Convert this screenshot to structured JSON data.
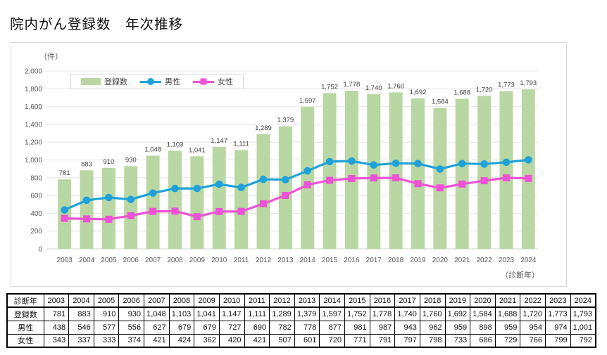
{
  "page_title": "院内がん登録数　年次推移",
  "chart": {
    "colors": {
      "bar": "#b9d7a2",
      "male": "#1fa2da",
      "female": "#ee51d7",
      "grid": "#e4e4e4",
      "zero_line": "#cfcfcf",
      "axis_text": "#595959",
      "bar_label": "#3f3f3f"
    }
  },
  "chart_data": {
    "type": "bar",
    "title": "院内がん登録数　年次推移",
    "ylabel": "（件）",
    "xlabel": "（診断年）",
    "ylim": [
      0,
      2000
    ],
    "ytick_step": 200,
    "grid": true,
    "legend_position": "top-left-inside",
    "categories": [
      "2003",
      "2004",
      "2005",
      "2006",
      "2007",
      "2008",
      "2009",
      "2010",
      "2011",
      "2012",
      "2013",
      "2014",
      "2015",
      "2016",
      "2017",
      "2018",
      "2019",
      "2020",
      "2021",
      "2022",
      "2023",
      "2024"
    ],
    "series": [
      {
        "name": "登録数",
        "type": "bar",
        "values": [
          781,
          883,
          910,
          930,
          1048,
          1103,
          1041,
          1147,
          1111,
          1289,
          1379,
          1597,
          1752,
          1778,
          1740,
          1760,
          1692,
          1584,
          1688,
          1720,
          1773,
          1793
        ]
      },
      {
        "name": "男性",
        "type": "line",
        "marker": "circle",
        "values": [
          438,
          546,
          577,
          556,
          627,
          679,
          679,
          727,
          690,
          782,
          778,
          877,
          981,
          987,
          943,
          962,
          959,
          898,
          959,
          954,
          974,
          1001
        ]
      },
      {
        "name": "女性",
        "type": "line",
        "marker": "square",
        "values": [
          343,
          337,
          333,
          374,
          421,
          424,
          362,
          420,
          421,
          507,
          601,
          720,
          771,
          791,
          797,
          798,
          733,
          686,
          729,
          766,
          799,
          792
        ]
      }
    ]
  },
  "table": {
    "row_headers": [
      "診断年",
      "登録数",
      "男性",
      "女性"
    ]
  }
}
